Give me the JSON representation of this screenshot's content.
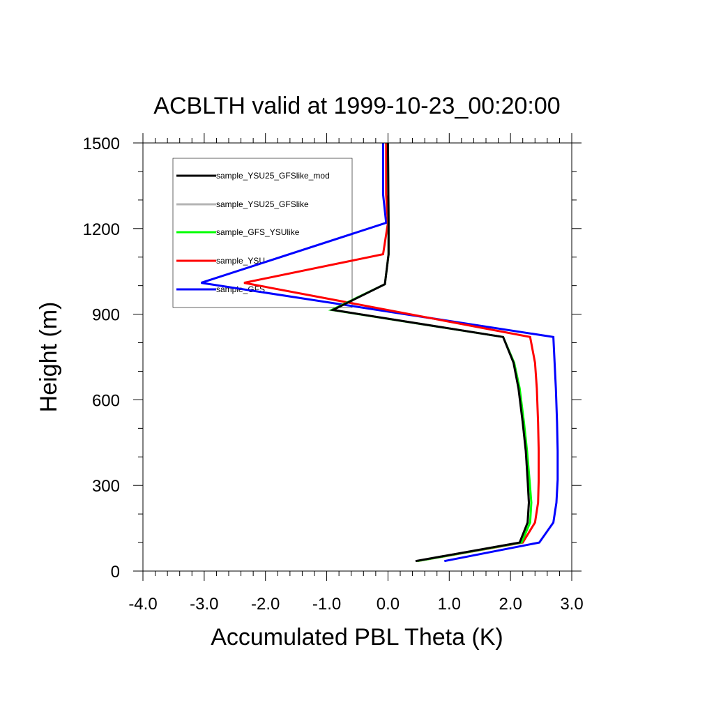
{
  "chart_data": {
    "type": "line",
    "title": "ACBLTH valid at 1999-10-23_00:20:00",
    "xlabel": "Accumulated PBL Theta (K)",
    "ylabel": "Height (m)",
    "xlim": [
      -4.0,
      3.0
    ],
    "ylim": [
      0,
      1500
    ],
    "x_ticks": [
      -4.0,
      -3.0,
      -2.0,
      -1.0,
      0.0,
      1.0,
      2.0,
      3.0
    ],
    "x_tick_labels": [
      "-4.0",
      "-3.0",
      "-2.0",
      "-1.0",
      "0.0",
      "1.0",
      "2.0",
      "3.0"
    ],
    "y_ticks": [
      0,
      300,
      600,
      900,
      1200,
      1500
    ],
    "y_tick_labels": [
      "0",
      "300",
      "600",
      "900",
      "1200",
      "1500"
    ],
    "grid": false,
    "legend_position": "top-left",
    "series": [
      {
        "name": "sample_YSU25_GFSlike_mod",
        "color": "#000000",
        "points": [
          [
            0.45,
            35
          ],
          [
            2.15,
            100
          ],
          [
            2.28,
            170
          ],
          [
            2.3,
            240
          ],
          [
            2.28,
            320
          ],
          [
            2.25,
            420
          ],
          [
            2.2,
            520
          ],
          [
            2.13,
            640
          ],
          [
            2.05,
            730
          ],
          [
            1.88,
            820
          ],
          [
            -0.9,
            915
          ],
          [
            -0.05,
            1005
          ],
          [
            0.01,
            1110
          ],
          [
            0.01,
            1220
          ],
          [
            0.0,
            1500
          ]
        ]
      },
      {
        "name": "sample_YSU25_GFSlike",
        "color": "#b4b4b4",
        "points": [
          [
            0.45,
            35
          ],
          [
            2.15,
            100
          ],
          [
            2.28,
            170
          ],
          [
            2.3,
            240
          ],
          [
            2.28,
            320
          ],
          [
            2.25,
            420
          ],
          [
            2.2,
            520
          ],
          [
            2.13,
            640
          ],
          [
            2.05,
            730
          ],
          [
            1.88,
            820
          ],
          [
            -0.9,
            915
          ],
          [
            -0.05,
            1005
          ],
          [
            0.01,
            1110
          ],
          [
            0.01,
            1220
          ],
          [
            0.0,
            1500
          ]
        ]
      },
      {
        "name": "sample_GFS_YSUlike",
        "color": "#00ff00",
        "points": [
          [
            0.48,
            35
          ],
          [
            2.18,
            100
          ],
          [
            2.32,
            170
          ],
          [
            2.34,
            240
          ],
          [
            2.31,
            320
          ],
          [
            2.27,
            420
          ],
          [
            2.22,
            520
          ],
          [
            2.15,
            640
          ],
          [
            2.06,
            730
          ],
          [
            1.88,
            820
          ],
          [
            -0.92,
            915
          ],
          [
            -0.05,
            1005
          ],
          [
            0.01,
            1110
          ],
          [
            0.01,
            1220
          ],
          [
            0.0,
            1500
          ]
        ]
      },
      {
        "name": "sample_YSU",
        "color": "#ff0000",
        "points": [
          [
            0.48,
            35
          ],
          [
            2.2,
            100
          ],
          [
            2.4,
            170
          ],
          [
            2.45,
            240
          ],
          [
            2.46,
            320
          ],
          [
            2.46,
            420
          ],
          [
            2.45,
            520
          ],
          [
            2.43,
            640
          ],
          [
            2.4,
            730
          ],
          [
            2.32,
            820
          ],
          [
            -2.35,
            1010
          ],
          [
            -0.08,
            1110
          ],
          [
            0.0,
            1220
          ],
          [
            -0.03,
            1320
          ],
          [
            -0.03,
            1500
          ]
        ]
      },
      {
        "name": "sample_GFS",
        "color": "#0000ff",
        "points": [
          [
            0.92,
            35
          ],
          [
            2.47,
            100
          ],
          [
            2.7,
            170
          ],
          [
            2.75,
            240
          ],
          [
            2.77,
            320
          ],
          [
            2.77,
            420
          ],
          [
            2.76,
            520
          ],
          [
            2.74,
            640
          ],
          [
            2.72,
            730
          ],
          [
            2.7,
            820
          ],
          [
            -3.05,
            1010
          ],
          [
            -0.03,
            1220
          ],
          [
            -0.08,
            1320
          ],
          [
            -0.08,
            1500
          ]
        ]
      }
    ]
  }
}
